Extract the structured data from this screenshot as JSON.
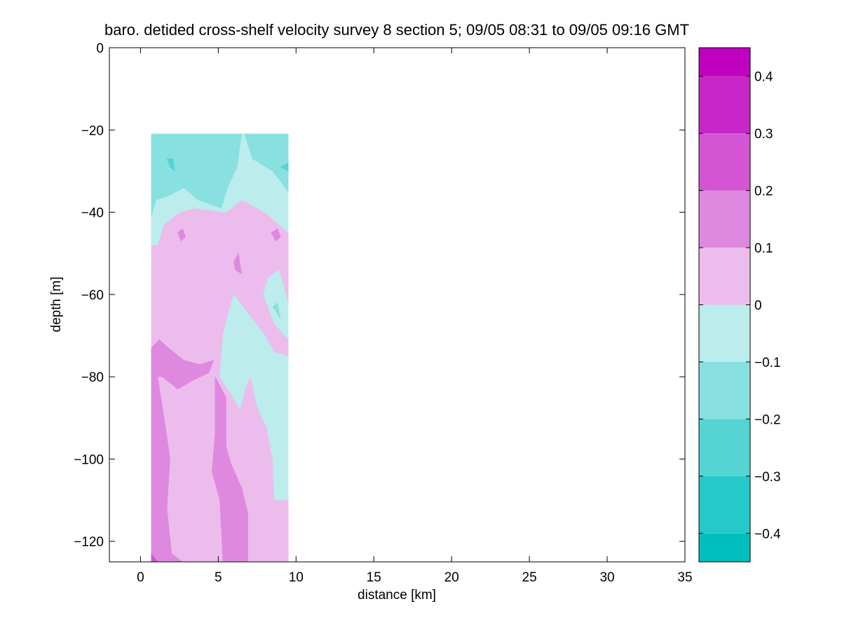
{
  "chart_data": {
    "type": "contour",
    "title": "baro. detided cross-shelf velocity survey 8 section 5; 09/05 08:31 to 09/05 09:16 GMT",
    "xlabel": "distance [km]",
    "ylabel": "depth [m]",
    "xlim": [
      -2,
      35
    ],
    "ylim": [
      -125,
      0
    ],
    "xticks": [
      "0",
      "5",
      "10",
      "15",
      "20",
      "25",
      "30",
      "35"
    ],
    "xtick_values": [
      0,
      5,
      10,
      15,
      20,
      25,
      30,
      35
    ],
    "yticks": [
      "0",
      "−20",
      "−40",
      "−60",
      "−80",
      "−100",
      "−120"
    ],
    "ytick_values": [
      0,
      -20,
      -40,
      -60,
      -80,
      -100,
      -120
    ],
    "data_extent": {
      "x": [
        0.7,
        9.5
      ],
      "depth": [
        -21,
        -125
      ]
    },
    "colorbar": {
      "range": [
        -0.45,
        0.45
      ],
      "ticks": [
        "−0.4",
        "−0.3",
        "−0.2",
        "−0.1",
        "0",
        "0.1",
        "0.2",
        "0.3",
        "0.4"
      ],
      "tick_values": [
        -0.4,
        -0.3,
        -0.2,
        -0.1,
        0,
        0.1,
        0.2,
        0.3,
        0.4
      ],
      "levels": [
        {
          "from": -0.45,
          "to": -0.4,
          "color": "#00bfbf"
        },
        {
          "from": -0.4,
          "to": -0.3,
          "color": "#26c9c9"
        },
        {
          "from": -0.3,
          "to": -0.2,
          "color": "#55d4d4"
        },
        {
          "from": -0.2,
          "to": -0.1,
          "color": "#88e0e0"
        },
        {
          "from": -0.1,
          "to": 0,
          "color": "#bcecec"
        },
        {
          "from": 0,
          "to": 0.1,
          "color": "#ecbcec"
        },
        {
          "from": 0.1,
          "to": 0.2,
          "color": "#df88df"
        },
        {
          "from": 0.2,
          "to": 0.3,
          "color": "#d455d4"
        },
        {
          "from": 0.3,
          "to": 0.4,
          "color": "#c926c9"
        },
        {
          "from": 0.4,
          "to": 0.45,
          "color": "#bf00bf"
        }
      ]
    },
    "regions": [
      {
        "value": 0.05,
        "poly": [
          [
            0.7,
            -21
          ],
          [
            9.5,
            -21
          ],
          [
            9.5,
            -125
          ],
          [
            0.7,
            -125
          ]
        ]
      },
      {
        "value": -0.05,
        "poly": [
          [
            0.7,
            -21
          ],
          [
            9.5,
            -21
          ],
          [
            9.5,
            -45
          ],
          [
            8.0,
            -40
          ],
          [
            6.5,
            -37
          ],
          [
            5.5,
            -40
          ],
          [
            3.5,
            -39
          ],
          [
            2.5,
            -40
          ],
          [
            1.5,
            -43
          ],
          [
            1.1,
            -48
          ],
          [
            0.7,
            -48
          ]
        ]
      },
      {
        "value": -0.15,
        "poly": [
          [
            0.7,
            -21
          ],
          [
            6.7,
            -21
          ],
          [
            7.2,
            -27
          ],
          [
            8.5,
            -30
          ],
          [
            9.5,
            -35
          ],
          [
            9.5,
            -21
          ]
        ]
      },
      {
        "value": -0.15,
        "poly": [
          [
            0.7,
            -21
          ],
          [
            6.5,
            -21
          ],
          [
            6.2,
            -29
          ],
          [
            5.6,
            -34
          ],
          [
            5.2,
            -39
          ],
          [
            3.7,
            -37
          ],
          [
            2.8,
            -34
          ],
          [
            1.8,
            -36
          ],
          [
            1.0,
            -37
          ],
          [
            0.7,
            -41
          ]
        ]
      },
      {
        "value": -0.25,
        "poly": [
          [
            1.7,
            -27
          ],
          [
            2.1,
            -27
          ],
          [
            2.2,
            -30
          ],
          [
            1.9,
            -29
          ]
        ]
      },
      {
        "value": -0.25,
        "poly": [
          [
            9.0,
            -29
          ],
          [
            9.5,
            -28
          ],
          [
            9.5,
            -30
          ]
        ]
      },
      {
        "value": -0.05,
        "poly": [
          [
            8.2,
            -56
          ],
          [
            8.9,
            -54
          ],
          [
            9.5,
            -62
          ],
          [
            9.5,
            -71
          ],
          [
            8.6,
            -67
          ],
          [
            7.9,
            -60
          ]
        ]
      },
      {
        "value": -0.15,
        "poly": [
          [
            8.5,
            -63
          ],
          [
            8.8,
            -62
          ],
          [
            9.0,
            -66
          ],
          [
            8.7,
            -64
          ]
        ]
      },
      {
        "value": -0.05,
        "poly": [
          [
            6.0,
            -60
          ],
          [
            7.0,
            -65
          ],
          [
            8.0,
            -70
          ],
          [
            8.6,
            -74
          ],
          [
            9.5,
            -75
          ],
          [
            9.5,
            -110
          ],
          [
            8.6,
            -110
          ],
          [
            8.5,
            -100
          ],
          [
            8.1,
            -92
          ],
          [
            7.8,
            -90
          ],
          [
            7.4,
            -86
          ],
          [
            7.1,
            -80
          ],
          [
            6.8,
            -82
          ],
          [
            6.4,
            -88
          ],
          [
            5.8,
            -84
          ],
          [
            5.1,
            -80
          ],
          [
            5.3,
            -70
          ],
          [
            5.6,
            -65
          ]
        ]
      },
      {
        "value": 0.15,
        "poly": [
          [
            6.0,
            -52
          ],
          [
            6.3,
            -50
          ],
          [
            6.5,
            -55
          ],
          [
            6.1,
            -54
          ]
        ]
      },
      {
        "value": 0.15,
        "poly": [
          [
            2.4,
            -45
          ],
          [
            2.7,
            -44
          ],
          [
            2.9,
            -46
          ],
          [
            2.6,
            -47
          ]
        ]
      },
      {
        "value": 0.15,
        "poly": [
          [
            8.4,
            -45
          ],
          [
            8.8,
            -44
          ],
          [
            9.0,
            -46
          ],
          [
            8.7,
            -47
          ]
        ]
      },
      {
        "value": 0.15,
        "poly": [
          [
            0.7,
            -73
          ],
          [
            1.2,
            -71
          ],
          [
            1.8,
            -73
          ],
          [
            2.8,
            -76
          ],
          [
            3.8,
            -77
          ],
          [
            4.7,
            -76
          ],
          [
            4.4,
            -79
          ],
          [
            3.3,
            -81
          ],
          [
            2.4,
            -83
          ],
          [
            1.4,
            -80
          ],
          [
            1.1,
            -80
          ],
          [
            1.6,
            -92
          ],
          [
            1.9,
            -100
          ],
          [
            1.7,
            -112
          ],
          [
            2.0,
            -123
          ],
          [
            2.7,
            -125
          ],
          [
            0.7,
            -125
          ]
        ]
      },
      {
        "value": 0.15,
        "poly": [
          [
            4.8,
            -80
          ],
          [
            5.5,
            -85
          ],
          [
            5.5,
            -97
          ],
          [
            5.8,
            -101
          ],
          [
            6.5,
            -107
          ],
          [
            6.9,
            -113
          ],
          [
            6.9,
            -125
          ],
          [
            5.3,
            -125
          ],
          [
            5.1,
            -110
          ],
          [
            4.6,
            -103
          ],
          [
            4.8,
            -94
          ]
        ]
      },
      {
        "value": 0.25,
        "poly": [
          [
            0.7,
            -123
          ],
          [
            1.1,
            -125
          ],
          [
            0.7,
            -125
          ]
        ]
      }
    ]
  }
}
